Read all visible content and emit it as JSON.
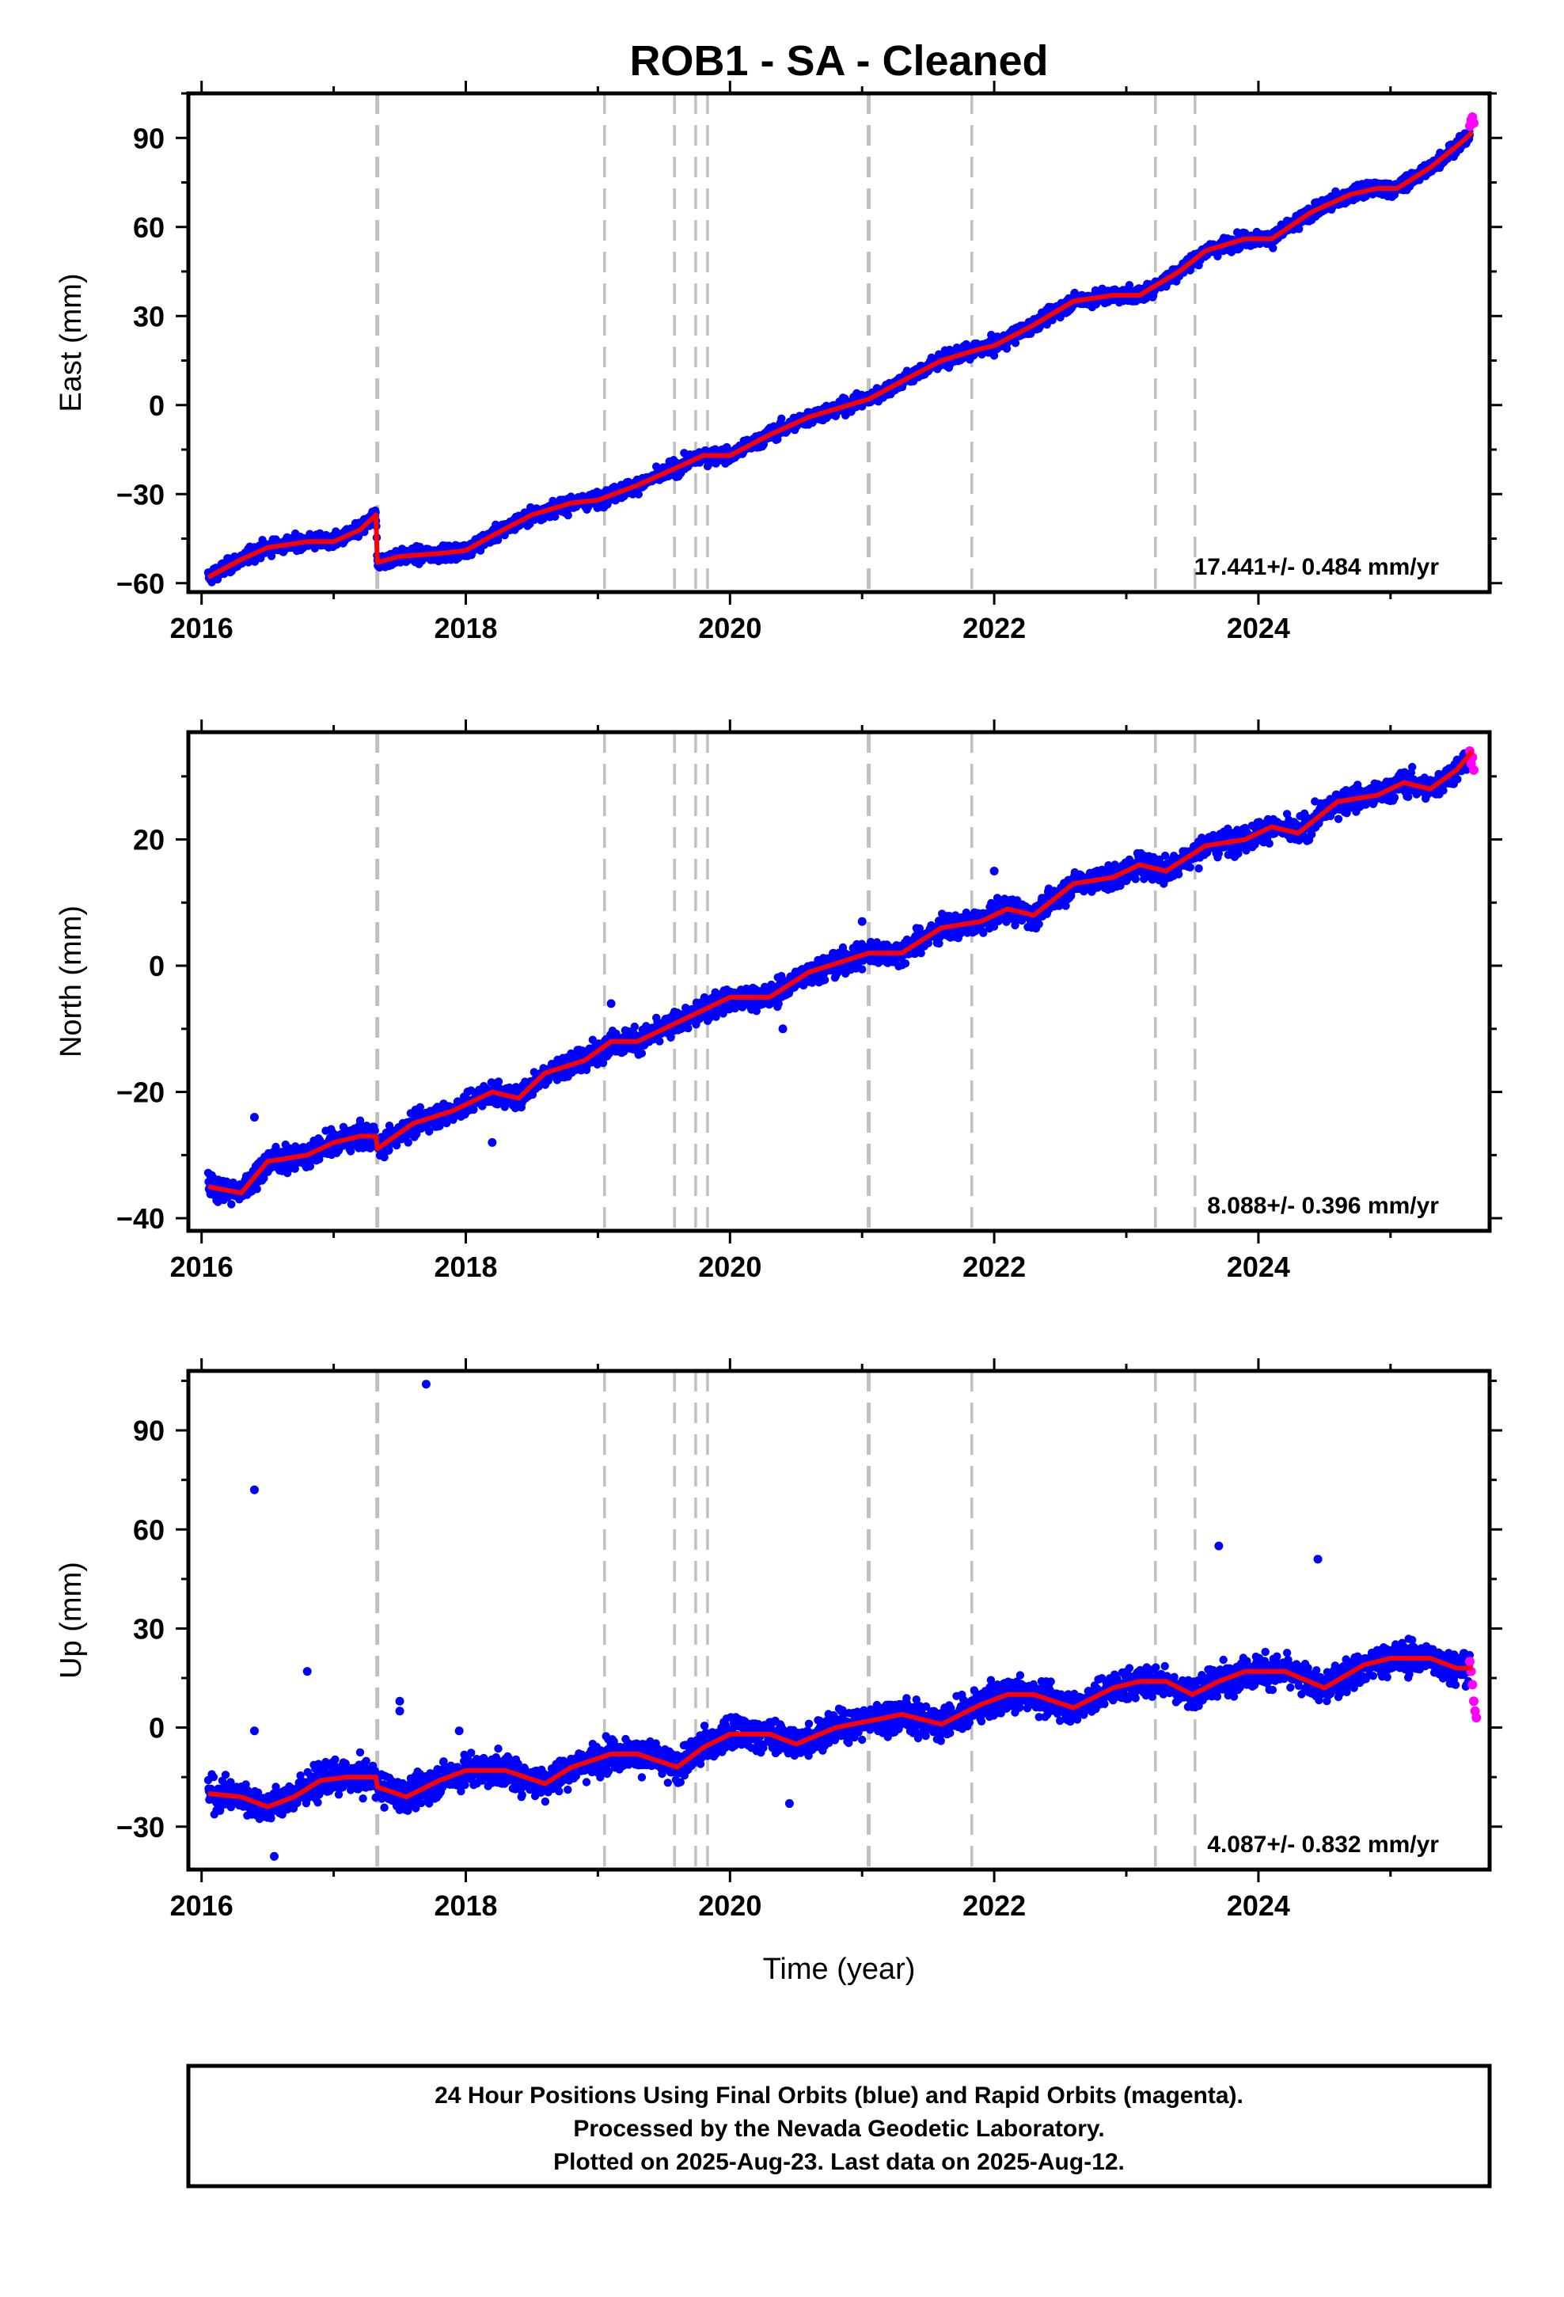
{
  "chart_data": {
    "type": "scatter",
    "title": "ROB1  - SA - Cleaned",
    "xlabel": "Time (year)",
    "xlim": [
      2015.9,
      2025.75
    ],
    "x_ticks": [
      2016,
      2018,
      2020,
      2022,
      2024
    ],
    "colors": {
      "final": "#0000ff",
      "rapid": "#ff00ff",
      "model": "#ff0000",
      "steps": "#c0c0c0"
    },
    "legend": "none",
    "grid": false,
    "step_epochs": [
      2017.33,
      2019.05,
      2019.58,
      2019.74,
      2019.83,
      2021.05,
      2021.83,
      2023.22,
      2023.52
    ],
    "panels": [
      {
        "name": "east",
        "ylabel": "East (mm)",
        "ylim": [
          -63,
          105
        ],
        "y_ticks": [
          -60,
          -30,
          0,
          30,
          60,
          90
        ],
        "rate": "17.441+/- 0.484 mm/yr",
        "trend": [
          [
            2016.05,
            -58
          ],
          [
            2016.3,
            -52
          ],
          [
            2016.5,
            -48
          ],
          [
            2016.8,
            -46
          ],
          [
            2017.0,
            -46
          ],
          [
            2017.2,
            -42
          ],
          [
            2017.32,
            -37
          ],
          [
            2017.33,
            -53
          ],
          [
            2017.5,
            -51
          ],
          [
            2017.8,
            -50
          ],
          [
            2018.0,
            -49
          ],
          [
            2018.2,
            -44
          ],
          [
            2018.5,
            -37
          ],
          [
            2018.8,
            -33
          ],
          [
            2019.0,
            -32
          ],
          [
            2019.3,
            -27
          ],
          [
            2019.6,
            -21
          ],
          [
            2019.8,
            -17
          ],
          [
            2020.0,
            -17
          ],
          [
            2020.3,
            -10
          ],
          [
            2020.6,
            -4
          ],
          [
            2020.9,
            0
          ],
          [
            2021.05,
            2
          ],
          [
            2021.3,
            8
          ],
          [
            2021.6,
            15
          ],
          [
            2021.9,
            19
          ],
          [
            2022.0,
            20
          ],
          [
            2022.3,
            27
          ],
          [
            2022.6,
            35
          ],
          [
            2022.9,
            37
          ],
          [
            2023.1,
            37
          ],
          [
            2023.4,
            45
          ],
          [
            2023.6,
            52
          ],
          [
            2023.9,
            56
          ],
          [
            2024.1,
            56
          ],
          [
            2024.4,
            65
          ],
          [
            2024.7,
            71
          ],
          [
            2024.9,
            73
          ],
          [
            2025.05,
            73
          ],
          [
            2025.3,
            80
          ],
          [
            2025.55,
            89
          ],
          [
            2025.62,
            92
          ]
        ],
        "noise_sd": 1.7,
        "outliers": [],
        "rapid": [
          [
            2025.6,
            94
          ],
          [
            2025.61,
            96
          ],
          [
            2025.62,
            97
          ],
          [
            2025.63,
            95
          ]
        ]
      },
      {
        "name": "north",
        "ylabel": "North (mm)",
        "ylim": [
          -42,
          37
        ],
        "y_ticks": [
          -40,
          -20,
          0,
          20
        ],
        "rate": "8.088+/- 0.396 mm/yr",
        "trend": [
          [
            2016.05,
            -35
          ],
          [
            2016.3,
            -36
          ],
          [
            2016.5,
            -31
          ],
          [
            2016.8,
            -30
          ],
          [
            2017.0,
            -28
          ],
          [
            2017.2,
            -27
          ],
          [
            2017.32,
            -27
          ],
          [
            2017.33,
            -29
          ],
          [
            2017.6,
            -25
          ],
          [
            2017.9,
            -23
          ],
          [
            2018.2,
            -20
          ],
          [
            2018.4,
            -21
          ],
          [
            2018.6,
            -17
          ],
          [
            2018.9,
            -15
          ],
          [
            2019.1,
            -12
          ],
          [
            2019.3,
            -12
          ],
          [
            2019.6,
            -9
          ],
          [
            2019.8,
            -7
          ],
          [
            2020.0,
            -5
          ],
          [
            2020.3,
            -5
          ],
          [
            2020.6,
            -1
          ],
          [
            2020.9,
            1
          ],
          [
            2021.05,
            2
          ],
          [
            2021.3,
            2
          ],
          [
            2021.6,
            6
          ],
          [
            2021.9,
            7
          ],
          [
            2022.1,
            9
          ],
          [
            2022.3,
            8
          ],
          [
            2022.6,
            13
          ],
          [
            2022.9,
            14
          ],
          [
            2023.1,
            16
          ],
          [
            2023.3,
            15
          ],
          [
            2023.6,
            19
          ],
          [
            2023.9,
            20
          ],
          [
            2024.1,
            22
          ],
          [
            2024.3,
            21
          ],
          [
            2024.6,
            26
          ],
          [
            2024.9,
            27
          ],
          [
            2025.1,
            29
          ],
          [
            2025.3,
            28
          ],
          [
            2025.5,
            31
          ],
          [
            2025.62,
            34
          ]
        ],
        "noise_sd": 1.3,
        "outliers": [
          [
            2016.4,
            -24
          ],
          [
            2018.2,
            -28
          ],
          [
            2019.1,
            -6
          ],
          [
            2020.4,
            -10
          ],
          [
            2021.0,
            7
          ],
          [
            2022.0,
            15
          ]
        ],
        "rapid": [
          [
            2025.6,
            34
          ],
          [
            2025.61,
            32
          ],
          [
            2025.62,
            33
          ],
          [
            2025.63,
            31
          ]
        ]
      },
      {
        "name": "up",
        "ylabel": "Up (mm)",
        "ylim": [
          -43,
          108
        ],
        "y_ticks": [
          -30,
          0,
          30,
          60,
          90
        ],
        "rate": "4.087+/- 0.832 mm/yr",
        "trend": [
          [
            2016.05,
            -20
          ],
          [
            2016.3,
            -21
          ],
          [
            2016.5,
            -24
          ],
          [
            2016.7,
            -21
          ],
          [
            2016.9,
            -16
          ],
          [
            2017.1,
            -15
          ],
          [
            2017.32,
            -15
          ],
          [
            2017.33,
            -18
          ],
          [
            2017.55,
            -21
          ],
          [
            2017.8,
            -16
          ],
          [
            2018.0,
            -13
          ],
          [
            2018.3,
            -13
          ],
          [
            2018.6,
            -17
          ],
          [
            2018.8,
            -12
          ],
          [
            2019.1,
            -8
          ],
          [
            2019.3,
            -8
          ],
          [
            2019.6,
            -12
          ],
          [
            2019.8,
            -6
          ],
          [
            2020.0,
            -2
          ],
          [
            2020.3,
            -2
          ],
          [
            2020.5,
            -5
          ],
          [
            2020.8,
            0
          ],
          [
            2021.05,
            2
          ],
          [
            2021.3,
            4
          ],
          [
            2021.6,
            1
          ],
          [
            2021.9,
            7
          ],
          [
            2022.1,
            10
          ],
          [
            2022.3,
            10
          ],
          [
            2022.6,
            6
          ],
          [
            2022.9,
            12
          ],
          [
            2023.1,
            14
          ],
          [
            2023.3,
            14
          ],
          [
            2023.5,
            10
          ],
          [
            2023.7,
            14
          ],
          [
            2023.9,
            17
          ],
          [
            2024.2,
            17
          ],
          [
            2024.5,
            12
          ],
          [
            2024.8,
            19
          ],
          [
            2025.0,
            21
          ],
          [
            2025.3,
            21
          ],
          [
            2025.5,
            18
          ],
          [
            2025.62,
            18
          ]
        ],
        "noise_sd": 3.3,
        "outliers": [
          [
            2016.4,
            72
          ],
          [
            2016.4,
            -1
          ],
          [
            2016.8,
            17
          ],
          [
            2017.5,
            8
          ],
          [
            2017.5,
            5
          ],
          [
            2017.7,
            104
          ],
          [
            2017.95,
            -1
          ],
          [
            2020.45,
            -23
          ],
          [
            2023.7,
            55
          ],
          [
            2024.45,
            51
          ],
          [
            2016.55,
            -39
          ]
        ],
        "rapid": [
          [
            2025.6,
            20
          ],
          [
            2025.61,
            17
          ],
          [
            2025.62,
            13
          ],
          [
            2025.63,
            8
          ],
          [
            2025.64,
            5
          ],
          [
            2025.65,
            3
          ]
        ]
      }
    ]
  },
  "footer": {
    "line1": "24 Hour Positions Using Final Orbits (blue) and Rapid Orbits (magenta).",
    "line2": "Processed by the Nevada Geodetic Laboratory.",
    "line3": "Plotted on 2025-Aug-23. Last data on 2025-Aug-12."
  }
}
